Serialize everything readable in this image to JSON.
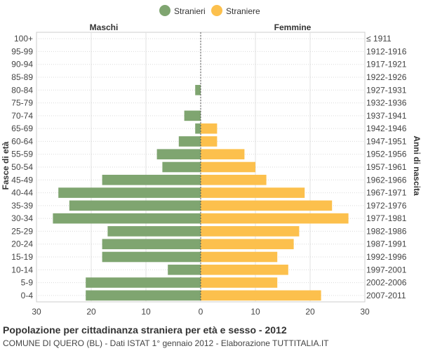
{
  "chart_data": {
    "type": "bar",
    "orientation": "horizontal-pyramid",
    "legend": {
      "placement": "top-center",
      "items": [
        "Stranieri",
        "Straniere"
      ]
    },
    "left_header": "Maschi",
    "right_header": "Femmine",
    "ylabel_left": "Fasce di età",
    "ylabel_right": "Anni di nascita",
    "age_groups": [
      "100+",
      "95-99",
      "90-94",
      "85-89",
      "80-84",
      "75-79",
      "70-74",
      "65-69",
      "60-64",
      "55-59",
      "50-54",
      "45-49",
      "40-44",
      "35-39",
      "30-34",
      "25-29",
      "20-24",
      "15-19",
      "10-14",
      "5-9",
      "0-4"
    ],
    "birth_years": [
      "≤ 1911",
      "1912-1916",
      "1917-1921",
      "1922-1926",
      "1927-1931",
      "1932-1936",
      "1937-1941",
      "1942-1946",
      "1947-1951",
      "1952-1956",
      "1957-1961",
      "1962-1966",
      "1967-1971",
      "1972-1976",
      "1977-1981",
      "1982-1986",
      "1987-1991",
      "1992-1996",
      "1997-2001",
      "2002-2006",
      "2007-2011"
    ],
    "series": [
      {
        "name": "Stranieri",
        "side": "left",
        "color": "#7fa570",
        "values": [
          0,
          0,
          0,
          0,
          1,
          0,
          3,
          1,
          4,
          8,
          7,
          18,
          26,
          24,
          27,
          17,
          18,
          18,
          6,
          21,
          21
        ]
      },
      {
        "name": "Straniere",
        "side": "right",
        "color": "#fcc04d",
        "values": [
          0,
          0,
          0,
          0,
          0,
          0,
          0,
          3,
          3,
          8,
          10,
          12,
          19,
          24,
          27,
          18,
          17,
          14,
          16,
          14,
          22
        ]
      }
    ],
    "x_ticks": [
      "30",
      "20",
      "10",
      "0",
      "10",
      "20",
      "30"
    ],
    "xlim": [
      -30,
      30
    ],
    "grid": true
  },
  "caption": {
    "title": "Popolazione per cittadinanza straniera per età e sesso - 2012",
    "subtitle": "COMUNE DI QUERO (BL) - Dati ISTAT 1° gennaio 2012 - Elaborazione TUTTITALIA.IT"
  }
}
